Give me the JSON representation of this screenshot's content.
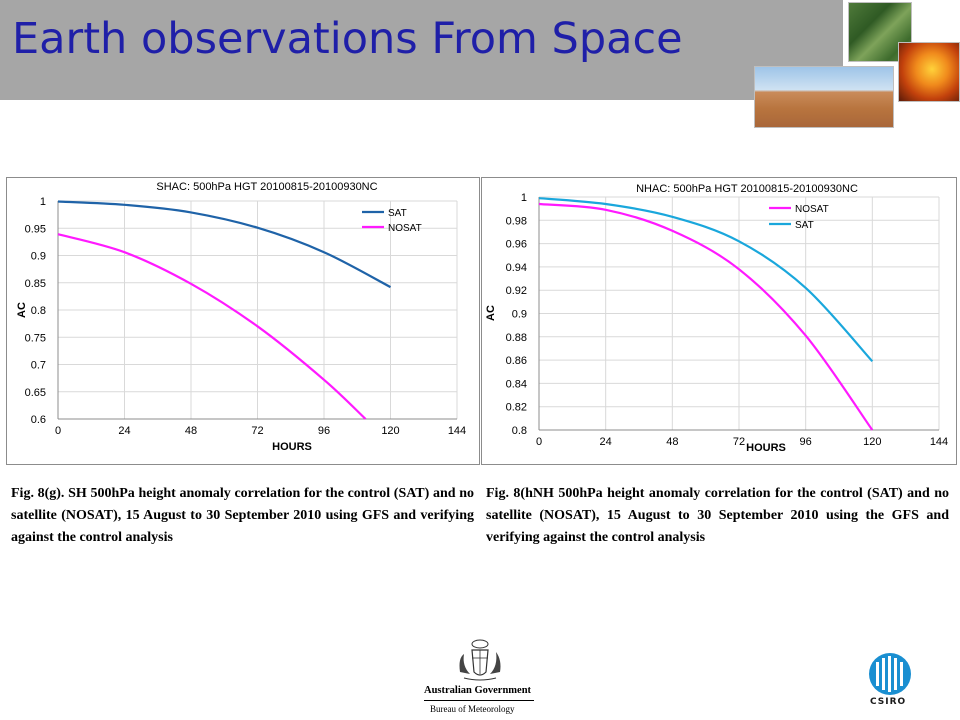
{
  "slide": {
    "title": "Earth observations From Space",
    "caption_left": "Fig. 8(g). SH 500hPa height anomaly correlation for the control (SAT) and no satellite (NOSAT), 15 August to 30 September 2010 using GFS  and verifying against the control analysis",
    "caption_right": "Fig. 8(hNH 500hPa height anomaly correlation for the control (SAT) and no satellite (NOSAT), 15 August to 30 September 2010 using the GFS  and verifying against the control analysis",
    "logo_gov_line1": "Australian Government",
    "logo_gov_line2": "Bureau of Meteorology",
    "logo_csiro": "CSIRO"
  },
  "colors": {
    "title": "#1f1fa8",
    "title_bar": "#a6a6a6",
    "sat_left": "#1f63a8",
    "sat_right": "#1aa7dc",
    "nosat": "#ff1aff"
  },
  "chart_data": [
    {
      "type": "line",
      "title": "SHAC: 500hPa HGT 20100815-20100930NC",
      "xlabel": "HOURS",
      "ylabel": "AC",
      "xlim": [
        0,
        144
      ],
      "ylim": [
        0.6,
        1
      ],
      "xticks": [
        "0",
        "24",
        "48",
        "72",
        "96",
        "120",
        "144"
      ],
      "yticks": [
        "0.6",
        "0.65",
        "0.7",
        "0.75",
        "0.8",
        "0.85",
        "0.9",
        "0.95",
        "1"
      ],
      "grid": true,
      "legend": "top-right",
      "series": [
        {
          "name": "SAT",
          "color": "#1f63a8",
          "x": [
            0,
            24,
            48,
            72,
            96,
            120
          ],
          "y": [
            0.999,
            0.993,
            0.979,
            0.951,
            0.906,
            0.842
          ]
        },
        {
          "name": "NOSAT",
          "color": "#ff1aff",
          "x": [
            0,
            24,
            48,
            72,
            96,
            111
          ],
          "y": [
            0.939,
            0.906,
            0.848,
            0.77,
            0.672,
            0.6
          ]
        }
      ]
    },
    {
      "type": "line",
      "title": "NHAC: 500hPa HGT 20100815-20100930NC",
      "xlabel": "HOURS",
      "ylabel": "AC",
      "xlim": [
        0,
        144
      ],
      "ylim": [
        0.8,
        1
      ],
      "xticks": [
        "0",
        "24",
        "48",
        "72",
        "96",
        "120",
        "144"
      ],
      "yticks": [
        "0.8",
        "0.82",
        "0.84",
        "0.86",
        "0.88",
        "0.9",
        "0.92",
        "0.94",
        "0.96",
        "0.98",
        "1"
      ],
      "grid": true,
      "legend": "top-right",
      "series": [
        {
          "name": "NOSAT",
          "color": "#ff1aff",
          "x": [
            0,
            24,
            48,
            72,
            96,
            120
          ],
          "y": [
            0.994,
            0.989,
            0.971,
            0.938,
            0.881,
            0.8
          ]
        },
        {
          "name": "SAT",
          "color": "#1aa7dc",
          "x": [
            0,
            24,
            48,
            72,
            96,
            120
          ],
          "y": [
            0.999,
            0.994,
            0.983,
            0.962,
            0.922,
            0.859
          ]
        }
      ]
    }
  ]
}
